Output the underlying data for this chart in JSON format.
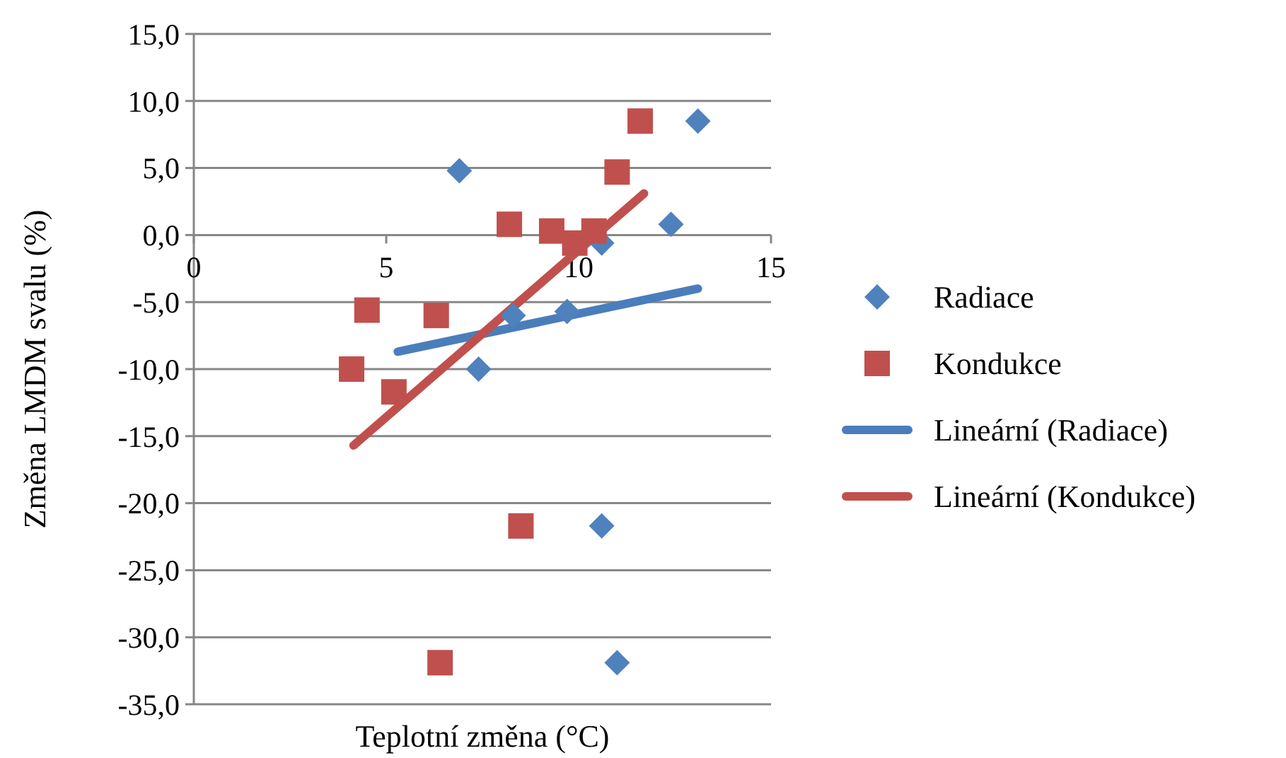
{
  "chart_data": {
    "type": "scatter",
    "xlabel": "Teplotní změna (°C)",
    "ylabel": "Změna LMDM svalu (%)",
    "xlim": [
      0,
      15
    ],
    "xticks": [
      0,
      5,
      10,
      15
    ],
    "ylim": [
      -35,
      15
    ],
    "yticks": [
      {
        "value": -35,
        "label": "-35,0"
      },
      {
        "value": -30,
        "label": "-30,0"
      },
      {
        "value": -25,
        "label": "-25,0"
      },
      {
        "value": -20,
        "label": "-20,0"
      },
      {
        "value": -15,
        "label": "-15,0"
      },
      {
        "value": -10,
        "label": "-10,0"
      },
      {
        "value": -5,
        "label": "-5,0"
      },
      {
        "value": 0,
        "label": "0,0"
      },
      {
        "value": 5,
        "label": "5,0"
      },
      {
        "value": 10,
        "label": "10,0"
      },
      {
        "value": 15,
        "label": "15,0"
      }
    ],
    "grid": "y",
    "legend": "right",
    "series": [
      {
        "name": "Radiace",
        "marker": "diamond",
        "color": "#4f81bd",
        "x": [
          6.9,
          13.1,
          12.4,
          10.6,
          9.7,
          8.3,
          7.4,
          10.6,
          11.0
        ],
        "values": [
          4.8,
          8.5,
          0.8,
          -0.6,
          -5.7,
          -6.0,
          -10.0,
          -21.7,
          -31.9
        ]
      },
      {
        "name": "Kondukce",
        "marker": "square",
        "color": "#c0504d",
        "x": [
          11.6,
          11.0,
          8.2,
          9.3,
          10.4,
          9.9,
          4.5,
          6.3,
          4.1,
          5.2,
          8.5,
          6.4
        ],
        "values": [
          8.5,
          4.7,
          0.8,
          0.3,
          0.3,
          -0.6,
          -5.6,
          -6.0,
          -10.0,
          -11.7,
          -21.7,
          -31.9
        ]
      },
      {
        "name": "Lineární (Radiace)",
        "type": "line",
        "color": "#4a7ebb",
        "x": [
          5.3,
          13.1
        ],
        "values": [
          -8.7,
          -4.0
        ]
      },
      {
        "name": "Lineární (Kondukce)",
        "type": "line",
        "color": "#c0504d",
        "x": [
          4.15,
          11.7
        ],
        "values": [
          -15.7,
          3.1
        ]
      }
    ]
  }
}
